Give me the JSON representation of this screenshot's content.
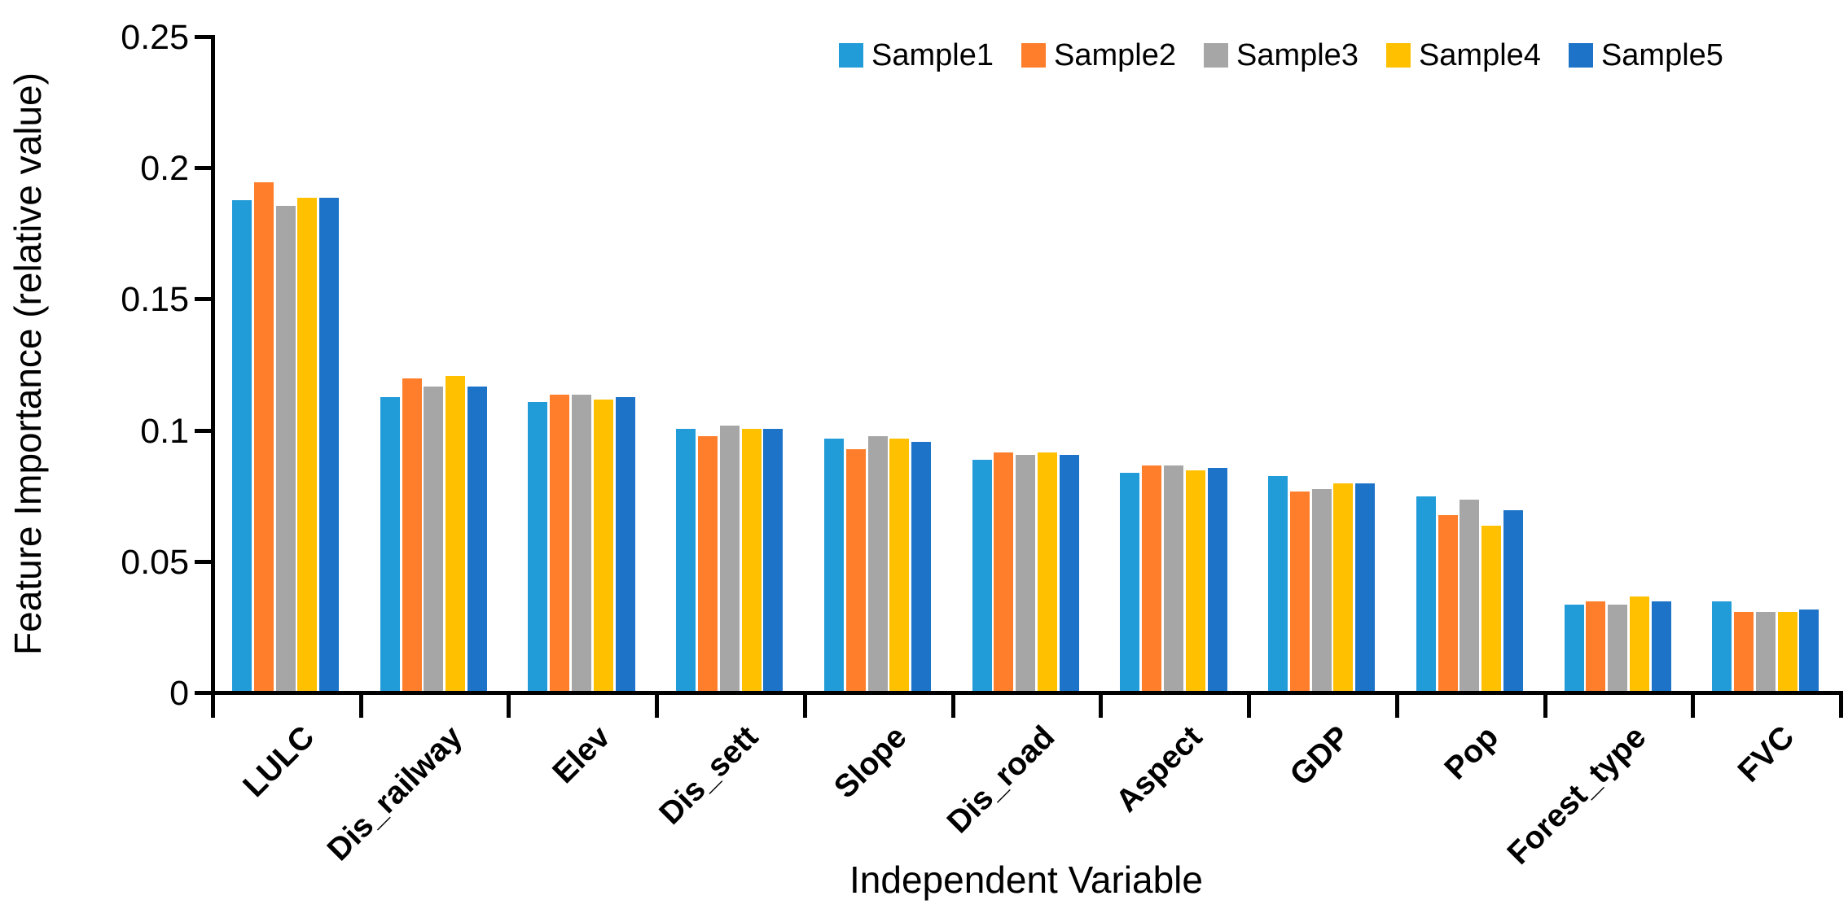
{
  "chart_data": {
    "type": "bar",
    "title": "",
    "xlabel": "Independent Variable",
    "ylabel": "Feature Importance (relative value)",
    "ylim": [
      0,
      0.25
    ],
    "yticks": [
      0,
      0.05,
      0.1,
      0.15,
      0.2,
      0.25
    ],
    "ytick_labels": [
      "0",
      "0.05",
      "0.1",
      "0.15",
      "0.2",
      "0.25"
    ],
    "grid": false,
    "legend_position": "top-right-horizontal",
    "axis_color": "#000000",
    "background_color": "#FFFFFF",
    "categories": [
      "LULC",
      "Dis_railway",
      "Elev",
      "Dis_sett",
      "Slope",
      "Dis_road",
      "Aspect",
      "GDP",
      "Pop",
      "Forest_type",
      "FVC"
    ],
    "series": [
      {
        "name": "Sample1",
        "color": "#219CD9",
        "values": [
          0.187,
          0.112,
          0.11,
          0.1,
          0.096,
          0.088,
          0.083,
          0.082,
          0.074,
          0.033,
          0.034
        ]
      },
      {
        "name": "Sample2",
        "color": "#FF7E2B",
        "values": [
          0.194,
          0.119,
          0.113,
          0.097,
          0.092,
          0.091,
          0.086,
          0.076,
          0.067,
          0.034,
          0.03
        ]
      },
      {
        "name": "Sample3",
        "color": "#A6A6A6",
        "values": [
          0.185,
          0.116,
          0.113,
          0.101,
          0.097,
          0.09,
          0.086,
          0.077,
          0.073,
          0.033,
          0.03
        ]
      },
      {
        "name": "Sample4",
        "color": "#FFC000",
        "values": [
          0.188,
          0.12,
          0.111,
          0.1,
          0.096,
          0.091,
          0.084,
          0.079,
          0.063,
          0.036,
          0.03
        ]
      },
      {
        "name": "Sample5",
        "color": "#1C73C7",
        "values": [
          0.188,
          0.116,
          0.112,
          0.1,
          0.095,
          0.09,
          0.085,
          0.079,
          0.069,
          0.034,
          0.031
        ]
      }
    ]
  }
}
